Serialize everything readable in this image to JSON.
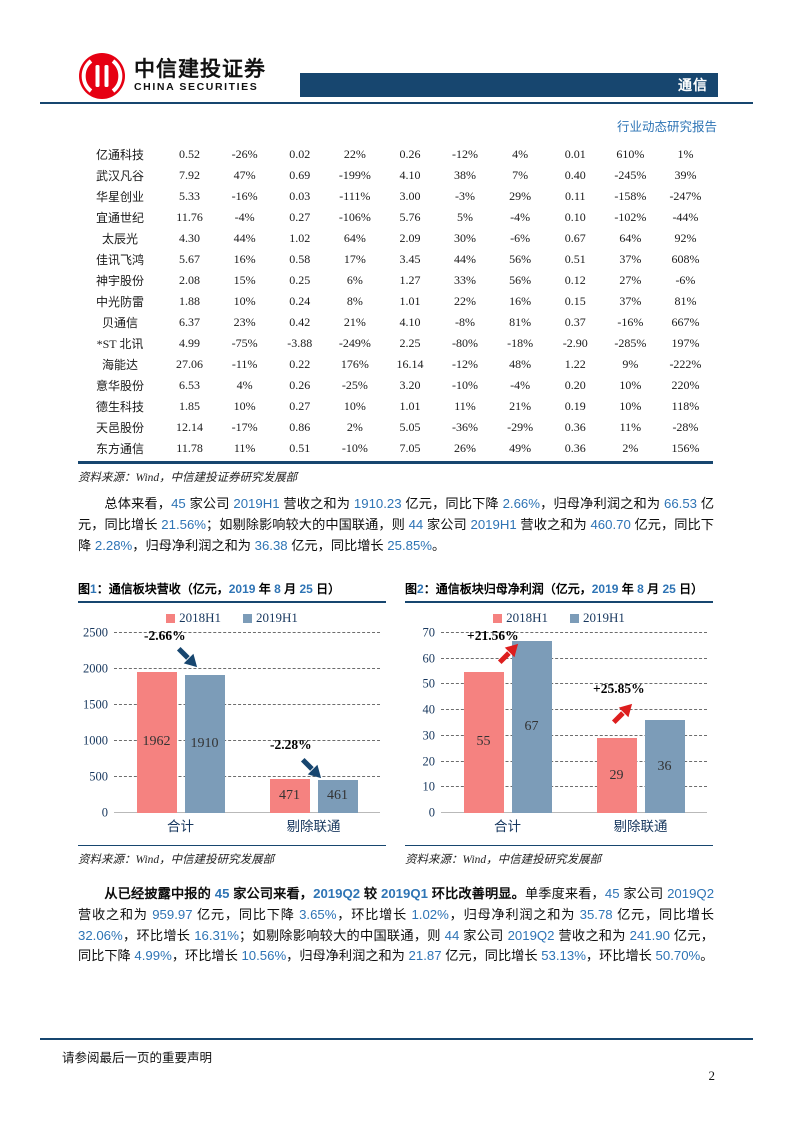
{
  "header": {
    "brand_cn": "中信建投证券",
    "brand_en": "CHINA SECURITIES",
    "band_label": "通信",
    "report_type": "行业动态研究报告"
  },
  "table": {
    "rows": [
      [
        "亿通科技",
        "0.52",
        "-26%",
        "0.02",
        "22%",
        "0.26",
        "-12%",
        "4%",
        "0.01",
        "610%",
        "1%"
      ],
      [
        "武汉凡谷",
        "7.92",
        "47%",
        "0.69",
        "-199%",
        "4.10",
        "38%",
        "7%",
        "0.40",
        "-245%",
        "39%"
      ],
      [
        "华星创业",
        "5.33",
        "-16%",
        "0.03",
        "-111%",
        "3.00",
        "-3%",
        "29%",
        "0.11",
        "-158%",
        "-247%"
      ],
      [
        "宜通世纪",
        "11.76",
        "-4%",
        "0.27",
        "-106%",
        "5.76",
        "5%",
        "-4%",
        "0.10",
        "-102%",
        "-44%"
      ],
      [
        "太辰光",
        "4.30",
        "44%",
        "1.02",
        "64%",
        "2.09",
        "30%",
        "-6%",
        "0.67",
        "64%",
        "92%"
      ],
      [
        "佳讯飞鸿",
        "5.67",
        "16%",
        "0.58",
        "17%",
        "3.45",
        "44%",
        "56%",
        "0.51",
        "37%",
        "608%"
      ],
      [
        "神宇股份",
        "2.08",
        "15%",
        "0.25",
        "6%",
        "1.27",
        "33%",
        "56%",
        "0.12",
        "27%",
        "-6%"
      ],
      [
        "中光防雷",
        "1.88",
        "10%",
        "0.24",
        "8%",
        "1.01",
        "22%",
        "16%",
        "0.15",
        "37%",
        "81%"
      ],
      [
        "贝通信",
        "6.37",
        "23%",
        "0.42",
        "21%",
        "4.10",
        "-8%",
        "81%",
        "0.37",
        "-16%",
        "667%"
      ],
      [
        "*ST 北讯",
        "4.99",
        "-75%",
        "-3.88",
        "-249%",
        "2.25",
        "-80%",
        "-18%",
        "-2.90",
        "-285%",
        "197%"
      ],
      [
        "海能达",
        "27.06",
        "-11%",
        "0.22",
        "176%",
        "16.14",
        "-12%",
        "48%",
        "1.22",
        "9%",
        "-222%"
      ],
      [
        "意华股份",
        "6.53",
        "4%",
        "0.26",
        "-25%",
        "3.20",
        "-10%",
        "-4%",
        "0.20",
        "10%",
        "220%"
      ],
      [
        "德生科技",
        "1.85",
        "10%",
        "0.27",
        "10%",
        "1.01",
        "11%",
        "21%",
        "0.19",
        "10%",
        "118%"
      ],
      [
        "天邑股份",
        "12.14",
        "-17%",
        "0.86",
        "2%",
        "5.05",
        "-36%",
        "-29%",
        "0.36",
        "11%",
        "-28%"
      ],
      [
        "东方通信",
        "11.78",
        "11%",
        "0.51",
        "-10%",
        "7.05",
        "26%",
        "49%",
        "0.36",
        "2%",
        "156%"
      ]
    ],
    "source": "资料来源：Wind，中信建投证券研究发展部"
  },
  "paragraphs": {
    "p1": "总体来看，45 家公司 2019H1 营收之和为 1910.23 亿元，同比下降 2.66%，归母净利润之和为 66.53 亿元，同比增长 21.56%；如剔除影响较大的中国联通，则 44 家公司 2019H1 营收之和为 460.70 亿元，同比下降 2.28%，归母净利润之和为 36.38 亿元，同比增长 25.85%。",
    "p2_lead": "从已经披露中报的 45 家公司来看，2019Q2 较 2019Q1 环比改善明显。",
    "p2_rest": "单季度来看，45 家公司 2019Q2 营收之和为 959.97 亿元，同比下降 3.65%，环比增长 1.02%，归母净利润之和为 35.78 亿元，同比增长 32.06%，环比增长 16.31%；如剔除影响较大的中国联通，则 44 家公司 2019Q2 营收之和为 241.90 亿元，同比下降 4.99%，环比增长 10.56%，归母净利润之和为 21.87 亿元，同比增长 53.13%，环比增长 50.70%。"
  },
  "chart_data": [
    {
      "type": "bar",
      "title": "图1：通信板块营收（亿元，2019 年 8 月 25 日）",
      "categories": [
        "合计",
        "剔除联通"
      ],
      "series": [
        {
          "name": "2018H1",
          "color": "#F58280",
          "values": [
            1962,
            471
          ]
        },
        {
          "name": "2019H1",
          "color": "#7C9CB8",
          "values": [
            1910,
            461
          ]
        }
      ],
      "ylim": [
        0,
        2500
      ],
      "ytick_step": 500,
      "grid": "dashed horizontal",
      "legend_position": "top",
      "annotations": [
        {
          "text": "-2.66%",
          "arrow": "down-right",
          "arrow_color": "#17466F"
        },
        {
          "text": "-2.28%",
          "arrow": "down-right",
          "arrow_color": "#17466F"
        }
      ],
      "source": "资料来源：Wind，中信建投研究发展部"
    },
    {
      "type": "bar",
      "title": "图2：通信板块归母净利润（亿元，2019 年 8 月 25 日）",
      "categories": [
        "合计",
        "剔除联通"
      ],
      "series": [
        {
          "name": "2018H1",
          "color": "#F58280",
          "values": [
            55,
            29
          ]
        },
        {
          "name": "2019H1",
          "color": "#7C9CB8",
          "values": [
            67,
            36
          ]
        }
      ],
      "ylim": [
        0,
        70
      ],
      "ytick_step": 10,
      "grid": "dashed horizontal",
      "legend_position": "top",
      "annotations": [
        {
          "text": "+21.56%",
          "arrow": "up-right",
          "arrow_color": "#DD1E1E"
        },
        {
          "text": "+25.85%",
          "arrow": "up-right",
          "arrow_color": "#DD1E1E"
        }
      ],
      "source": "资料来源：Wind，中信建投研究发展部"
    }
  ],
  "footer": {
    "disclaimer": "请参阅最后一页的重要声明",
    "page_number": "2"
  },
  "colors": {
    "navy": "#17466F",
    "accent_blue": "#2E74B5",
    "bar_2018": "#F58280",
    "bar_2019": "#7C9CB8",
    "arrow_red": "#DD1E1E",
    "logo_red": "#E60012"
  }
}
